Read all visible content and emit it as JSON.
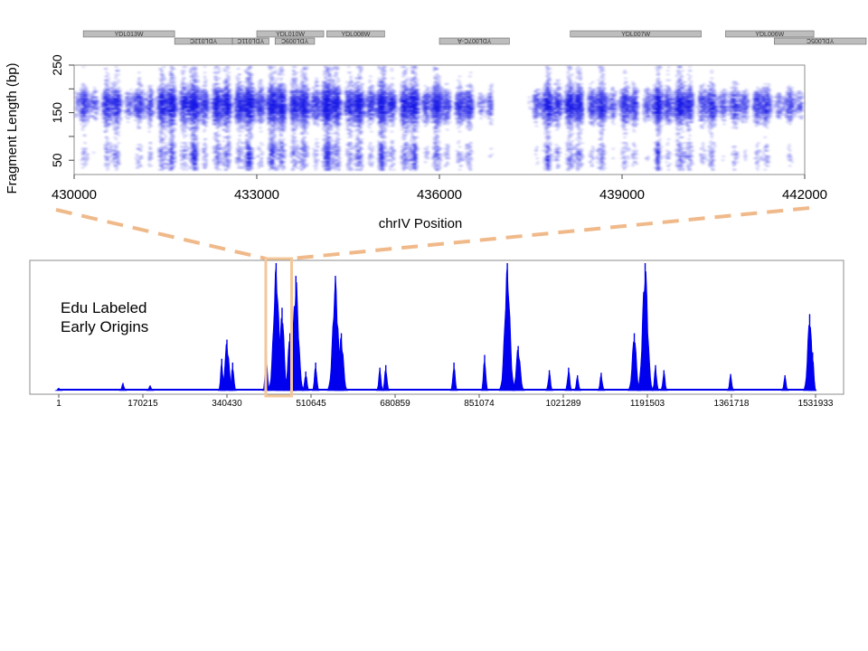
{
  "top_chart_ylabel": "Fragment Length (bp)",
  "top_chart_xlabel": "chrIV Position",
  "bottom_chart_annotation": [
    "Edu Labeled",
    "Early Origins"
  ],
  "colors": {
    "heat": "#1a1ae6",
    "signal": "#0000ee",
    "zoom_box": "#f4c79a",
    "zoom_lines": "#f0b98a",
    "gene_fill": "#bdbdbd",
    "frame": "#8c8c8c"
  },
  "chart_data": [
    {
      "type": "heatmap",
      "title": "",
      "xlabel": "chrIV Position",
      "ylabel": "Fragment Length (bp)",
      "xlim": [
        430000,
        442000
      ],
      "ylim": [
        20,
        250
      ],
      "x_ticks": [
        430000,
        433000,
        436000,
        439000,
        442000
      ],
      "y_ticks": [
        50,
        100,
        150,
        200,
        250
      ],
      "y_tick_labels": [
        "50",
        "",
        "150",
        "",
        "250"
      ],
      "density_description": "dense band of fragments near 150-180 bp across the region; gaps near 436500 and 437400; strong short fragments near 434200",
      "density_columns": [
        {
          "x": 430200,
          "w": 0.5
        },
        {
          "x": 430600,
          "w": 0.7
        },
        {
          "x": 431000,
          "w": 0.5
        },
        {
          "x": 431400,
          "w": 0.8
        },
        {
          "x": 431700,
          "w": 1.0
        },
        {
          "x": 432000,
          "w": 0.9
        },
        {
          "x": 432300,
          "w": 0.8
        },
        {
          "x": 432600,
          "w": 1.0
        },
        {
          "x": 432900,
          "w": 0.9
        },
        {
          "x": 433200,
          "w": 0.9
        },
        {
          "x": 433500,
          "w": 1.0
        },
        {
          "x": 433800,
          "w": 0.8
        },
        {
          "x": 434100,
          "w": 1.0
        },
        {
          "x": 434300,
          "w": 1.0
        },
        {
          "x": 434600,
          "w": 0.8
        },
        {
          "x": 434900,
          "w": 0.9
        },
        {
          "x": 435200,
          "w": 0.8
        },
        {
          "x": 435500,
          "w": 0.9
        },
        {
          "x": 435800,
          "w": 0.8
        },
        {
          "x": 436100,
          "w": 0.7
        },
        {
          "x": 436400,
          "w": 0.6
        },
        {
          "x": 436700,
          "w": 0.4
        },
        {
          "x": 437000,
          "w": 0.1
        },
        {
          "x": 437300,
          "w": 0.05
        },
        {
          "x": 437600,
          "w": 0.6
        },
        {
          "x": 437900,
          "w": 0.9
        },
        {
          "x": 438200,
          "w": 0.8
        },
        {
          "x": 438500,
          "w": 0.7
        },
        {
          "x": 438800,
          "w": 0.6
        },
        {
          "x": 439100,
          "w": 0.6
        },
        {
          "x": 439400,
          "w": 0.5
        },
        {
          "x": 439700,
          "w": 0.9
        },
        {
          "x": 440000,
          "w": 0.8
        },
        {
          "x": 440300,
          "w": 0.6
        },
        {
          "x": 440600,
          "w": 0.6
        },
        {
          "x": 440900,
          "w": 0.5
        },
        {
          "x": 441200,
          "w": 0.6
        },
        {
          "x": 441500,
          "w": 0.5
        },
        {
          "x": 441800,
          "w": 0.4
        }
      ],
      "genes": [
        {
          "name": "YDL013W",
          "start": 430150,
          "end": 431650,
          "row": 0,
          "strand": "+"
        },
        {
          "name": "YDL012C",
          "start": 431650,
          "end": 432600,
          "row": 1,
          "strand": "-"
        },
        {
          "name": "YDL011C",
          "start": 432600,
          "end": 433200,
          "row": 1,
          "strand": "-"
        },
        {
          "name": "YDL010W",
          "start": 433000,
          "end": 434100,
          "row": 0,
          "strand": "+"
        },
        {
          "name": "YDL009C",
          "start": 433300,
          "end": 433950,
          "row": 1,
          "strand": "-"
        },
        {
          "name": "YDL008W",
          "start": 434150,
          "end": 435100,
          "row": 0,
          "strand": "+"
        },
        {
          "name": "YDL007C-A",
          "start": 436000,
          "end": 437150,
          "row": 1,
          "strand": "-"
        },
        {
          "name": "YDL007W",
          "start": 438150,
          "end": 440300,
          "row": 0,
          "strand": "+"
        },
        {
          "name": "YDL006W",
          "start": 440700,
          "end": 442150,
          "row": 0,
          "strand": "+"
        },
        {
          "name": "YDL005C",
          "start": 441500,
          "end": 443300,
          "row": 1,
          "strand": "-"
        }
      ]
    },
    {
      "type": "area",
      "title": "",
      "xlabel": "",
      "ylabel": "",
      "xlim": [
        1,
        1531933
      ],
      "ylim": [
        0,
        1
      ],
      "x_ticks": [
        1,
        170215,
        340430,
        510645,
        680859,
        851074,
        1021289,
        1191503,
        1361718,
        1531933
      ],
      "zoom_region": [
        430000,
        442000
      ],
      "grid": false,
      "series": [
        {
          "values_description": "approximate peak heights (fraction of axis max) at genomic positions",
          "points": [
            {
              "x": 1,
              "y": 0.02
            },
            {
              "x": 130000,
              "y": 0.06
            },
            {
              "x": 185000,
              "y": 0.04
            },
            {
              "x": 330000,
              "y": 0.25
            },
            {
              "x": 340430,
              "y": 0.4
            },
            {
              "x": 352000,
              "y": 0.22
            },
            {
              "x": 420000,
              "y": 0.3
            },
            {
              "x": 440000,
              "y": 1.0
            },
            {
              "x": 452000,
              "y": 0.65
            },
            {
              "x": 468000,
              "y": 0.45
            },
            {
              "x": 480000,
              "y": 0.9
            },
            {
              "x": 500000,
              "y": 0.15
            },
            {
              "x": 520000,
              "y": 0.22
            },
            {
              "x": 560000,
              "y": 0.9
            },
            {
              "x": 572000,
              "y": 0.45
            },
            {
              "x": 650000,
              "y": 0.18
            },
            {
              "x": 662000,
              "y": 0.2
            },
            {
              "x": 800000,
              "y": 0.22
            },
            {
              "x": 862000,
              "y": 0.28
            },
            {
              "x": 908000,
              "y": 1.0
            },
            {
              "x": 930000,
              "y": 0.35
            },
            {
              "x": 993000,
              "y": 0.16
            },
            {
              "x": 1032000,
              "y": 0.18
            },
            {
              "x": 1050000,
              "y": 0.12
            },
            {
              "x": 1098000,
              "y": 0.14
            },
            {
              "x": 1165000,
              "y": 0.45
            },
            {
              "x": 1187000,
              "y": 1.0
            },
            {
              "x": 1208000,
              "y": 0.2
            },
            {
              "x": 1225000,
              "y": 0.16
            },
            {
              "x": 1360000,
              "y": 0.13
            },
            {
              "x": 1470000,
              "y": 0.12
            },
            {
              "x": 1520000,
              "y": 0.6
            },
            {
              "x": 1526000,
              "y": 0.3
            }
          ]
        }
      ]
    }
  ]
}
